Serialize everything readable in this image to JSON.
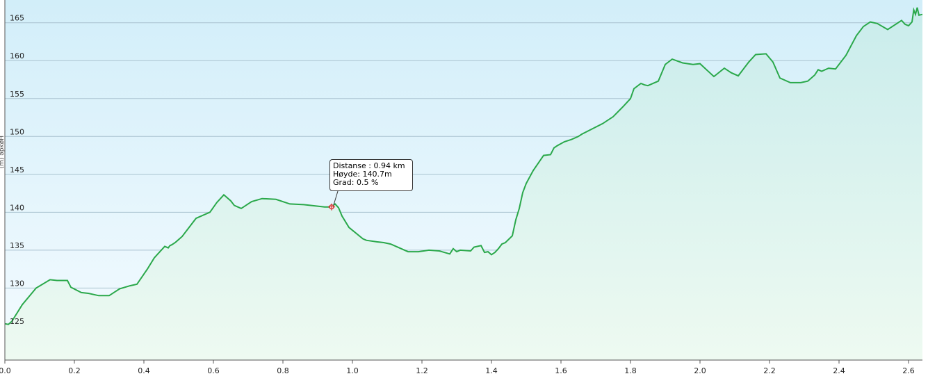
{
  "chart_data": {
    "type": "area",
    "title": "",
    "xlabel": "",
    "ylabel": "",
    "xlim": [
      0,
      2.64
    ],
    "ylim": [
      120.5,
      168
    ],
    "grid": true,
    "x_ticks": [
      0.0,
      0.2,
      0.4,
      0.6,
      0.8,
      1.0,
      1.2,
      1.4,
      1.6,
      1.8,
      2.0,
      2.2,
      2.4,
      2.6
    ],
    "x_tick_labels": [
      "0.0",
      "0.2",
      "0.4",
      "0.6",
      "0.8",
      "1.0",
      "1.2",
      "1.4",
      "1.6",
      "1.8",
      "2.0",
      "2.2",
      "2.4",
      "2.6"
    ],
    "y_ticks": [
      125,
      130,
      135,
      140,
      145,
      150,
      155,
      160,
      165
    ],
    "y_tick_labels": [
      "125",
      "130",
      "135",
      "140",
      "145",
      "150",
      "155",
      "160",
      "165"
    ],
    "colors": {
      "line": "#2aa84a",
      "fill_top": "#c9ecec",
      "fill_bottom": "#eefaf1",
      "bg_top": "#d2eef9",
      "bg_bottom": "#f4fbff",
      "grid": "#a9c2cf",
      "marker": "#d22020"
    },
    "series": [
      {
        "x": [
          0.0,
          0.01,
          0.02,
          0.05,
          0.09,
          0.13,
          0.15,
          0.18,
          0.19,
          0.22,
          0.24,
          0.27,
          0.3,
          0.33,
          0.36,
          0.37,
          0.38,
          0.41,
          0.43,
          0.46,
          0.47,
          0.475,
          0.48,
          0.49,
          0.51,
          0.55,
          0.59,
          0.61,
          0.63,
          0.65,
          0.66,
          0.67,
          0.68,
          0.71,
          0.74,
          0.78,
          0.82,
          0.86,
          0.9,
          0.92,
          0.94,
          0.95,
          0.96,
          0.97,
          0.99,
          1.03,
          1.04,
          1.07,
          1.09,
          1.11,
          1.14,
          1.16,
          1.19,
          1.22,
          1.25,
          1.28,
          1.29,
          1.3,
          1.31,
          1.34,
          1.35,
          1.37,
          1.38,
          1.39,
          1.4,
          1.41,
          1.42,
          1.43,
          1.44,
          1.46,
          1.47,
          1.48,
          1.49,
          1.5,
          1.52,
          1.55,
          1.57,
          1.58,
          1.59,
          1.61,
          1.63,
          1.65,
          1.66,
          1.69,
          1.72,
          1.75,
          1.78,
          1.8,
          1.81,
          1.83,
          1.84,
          1.85,
          1.88,
          1.9,
          1.92,
          1.95,
          1.98,
          2.0,
          2.04,
          2.07,
          2.09,
          2.11,
          2.14,
          2.16,
          2.19,
          2.21,
          2.23,
          2.26,
          2.29,
          2.31,
          2.33,
          2.34,
          2.35,
          2.37,
          2.39,
          2.42,
          2.45,
          2.47,
          2.49,
          2.51,
          2.54,
          2.58,
          2.59,
          2.6,
          2.61,
          2.615,
          2.62,
          2.625,
          2.63,
          2.64
        ],
        "y": [
          125.3,
          125.2,
          125.6,
          127.8,
          130.0,
          131.1,
          131.0,
          131.0,
          130.1,
          129.4,
          129.3,
          129.0,
          129.0,
          129.9,
          130.3,
          130.4,
          130.5,
          132.5,
          134.0,
          135.5,
          135.3,
          135.6,
          135.7,
          136.0,
          136.8,
          139.2,
          140.0,
          141.3,
          142.3,
          141.5,
          140.9,
          140.7,
          140.5,
          141.4,
          141.8,
          141.7,
          141.1,
          141.0,
          140.8,
          140.7,
          140.7,
          141.1,
          140.6,
          139.5,
          138.0,
          136.5,
          136.3,
          136.1,
          136.0,
          135.8,
          135.2,
          134.8,
          134.8,
          135.0,
          134.9,
          134.5,
          135.2,
          134.8,
          135.0,
          134.9,
          135.4,
          135.6,
          134.7,
          134.8,
          134.4,
          134.7,
          135.2,
          135.8,
          136.0,
          136.9,
          139.0,
          140.5,
          142.6,
          143.8,
          145.5,
          147.5,
          147.6,
          148.5,
          148.8,
          149.3,
          149.6,
          150.0,
          150.3,
          151.0,
          151.7,
          152.6,
          154.0,
          155.0,
          156.3,
          157.0,
          156.8,
          156.7,
          157.3,
          159.5,
          160.2,
          159.7,
          159.5,
          159.6,
          157.9,
          159.0,
          158.4,
          158.0,
          159.8,
          160.8,
          160.9,
          159.8,
          157.7,
          157.1,
          157.1,
          157.3,
          158.1,
          158.8,
          158.6,
          159.0,
          158.9,
          160.7,
          163.3,
          164.5,
          165.1,
          164.9,
          164.1,
          165.3,
          164.8,
          164.6,
          165.1,
          166.7,
          166.1,
          167.0,
          166.0,
          166.1
        ]
      }
    ],
    "annotation": {
      "x": 0.94,
      "y": 140.7,
      "lines": [
        "Distanse : 0.94 km",
        "Høyde: 140.7m",
        "Grad: 0.5 %"
      ]
    },
    "y_axis_label_partial": "(m) əpkøH"
  }
}
